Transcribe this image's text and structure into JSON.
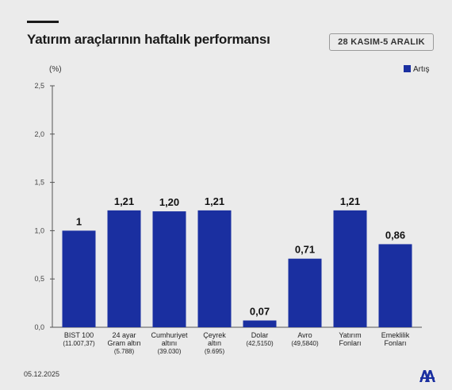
{
  "header": {
    "title": "Yatırım araçlarının haftalık performansı",
    "date_range": "28 KASIM-5 ARALIK"
  },
  "footer": {
    "date": "05.12.2025"
  },
  "chart_data": {
    "type": "bar",
    "unit_label": "(%)",
    "categories": [
      [
        "BIST 100",
        "(11.007,37)"
      ],
      [
        "24 ayar",
        "Gram altın",
        "(5.788)"
      ],
      [
        "Cumhuriyet",
        "altını",
        "(39.030)"
      ],
      [
        "Çeyrek",
        "altın",
        "(9.695)"
      ],
      [
        "Dolar",
        "(42,5150)"
      ],
      [
        "Avro",
        "(49,5840)"
      ],
      [
        "Yatırım",
        "Fonları"
      ],
      [
        "Emeklilik",
        "Fonları"
      ]
    ],
    "series": [
      {
        "name": "Artış",
        "color": "#1a2fa0",
        "values": [
          1,
          1.21,
          1.2,
          1.21,
          0.07,
          0.71,
          1.21,
          0.86
        ],
        "labels": [
          "1",
          "1,21",
          "1,20",
          "1,21",
          "0,07",
          "0,71",
          "1,21",
          "0,86"
        ]
      }
    ],
    "yticks": [
      "0,0",
      "0,5",
      "1,0",
      "1,5",
      "2,0",
      "2,5"
    ],
    "ylim": [
      0,
      2.5
    ],
    "legend_position": "top-right",
    "grid": false
  }
}
